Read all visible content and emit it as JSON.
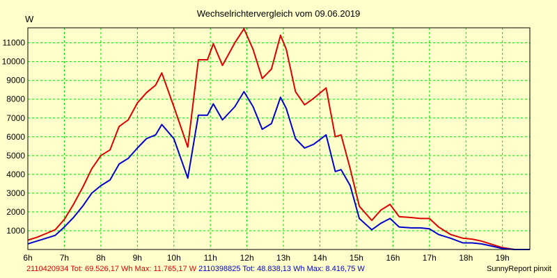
{
  "chart_data": {
    "type": "line",
    "title": "Wechselrichtervergleich vom 09.06.2019",
    "ylabel": "W",
    "xlabel": "",
    "ylim": [
      0,
      11800
    ],
    "xlim": [
      6.0,
      19.75
    ],
    "grid": true,
    "y_ticks": [
      "1000",
      "2000",
      "3000",
      "4000",
      "5000",
      "6000",
      "7000",
      "8000",
      "9000",
      "10000",
      "11000"
    ],
    "y_tick_values": [
      1000,
      2000,
      3000,
      4000,
      5000,
      6000,
      7000,
      8000,
      9000,
      10000,
      11000
    ],
    "x_ticks": [
      "6h",
      "7h",
      "8h",
      "9h",
      "10h",
      "11h",
      "12h",
      "13h",
      "14h",
      "15h",
      "16h",
      "17h",
      "18h",
      "19h"
    ],
    "x_tick_values": [
      6,
      7,
      8,
      9,
      10,
      11,
      12,
      13,
      14,
      15,
      16,
      17,
      18,
      19
    ],
    "series": [
      {
        "name": "2110420934",
        "color": "#dd0000",
        "x": [
          6.0,
          6.25,
          6.5,
          6.75,
          7.0,
          7.25,
          7.5,
          7.75,
          8.0,
          8.25,
          8.5,
          8.75,
          9.0,
          9.25,
          9.5,
          9.67,
          10.0,
          10.38,
          10.67,
          10.92,
          11.08,
          11.33,
          11.67,
          11.92,
          12.17,
          12.42,
          12.67,
          12.92,
          13.08,
          13.33,
          13.58,
          13.83,
          14.17,
          14.42,
          14.58,
          14.83,
          15.08,
          15.42,
          15.67,
          15.92,
          16.17,
          16.5,
          16.75,
          17.0,
          17.25,
          17.58,
          17.92,
          18.17,
          18.42,
          18.67,
          19.0,
          19.33,
          19.75
        ],
        "y": [
          500,
          650,
          850,
          1050,
          1600,
          2400,
          3300,
          4300,
          5000,
          5300,
          6550,
          6900,
          7800,
          8350,
          8750,
          9400,
          7600,
          5450,
          10100,
          10100,
          10950,
          9800,
          11000,
          11750,
          10650,
          9100,
          9600,
          11400,
          10650,
          8400,
          7700,
          8050,
          8600,
          6000,
          6100,
          4300,
          2300,
          1550,
          2100,
          2400,
          1750,
          1700,
          1650,
          1650,
          1200,
          800,
          600,
          550,
          450,
          300,
          100,
          0,
          0
        ]
      },
      {
        "name": "2110398825",
        "color": "#0000cc",
        "x": [
          6.0,
          6.25,
          6.5,
          6.75,
          7.0,
          7.25,
          7.5,
          7.75,
          8.0,
          8.25,
          8.5,
          8.75,
          9.0,
          9.25,
          9.5,
          9.67,
          10.0,
          10.38,
          10.67,
          10.92,
          11.08,
          11.33,
          11.67,
          11.92,
          12.17,
          12.42,
          12.67,
          12.92,
          13.08,
          13.33,
          13.58,
          13.83,
          14.17,
          14.42,
          14.58,
          14.83,
          15.08,
          15.42,
          15.67,
          15.92,
          16.17,
          16.5,
          16.75,
          17.0,
          17.25,
          17.58,
          17.92,
          18.17,
          18.42,
          18.67,
          19.0,
          19.33,
          19.75
        ],
        "y": [
          300,
          450,
          600,
          750,
          1200,
          1700,
          2300,
          3000,
          3400,
          3700,
          4550,
          4850,
          5400,
          5900,
          6100,
          6650,
          5900,
          3800,
          7150,
          7150,
          7750,
          6900,
          7600,
          8400,
          7600,
          6400,
          6700,
          8100,
          7500,
          5900,
          5400,
          5600,
          6100,
          4150,
          4250,
          3400,
          1650,
          1050,
          1400,
          1650,
          1200,
          1150,
          1150,
          1100,
          800,
          600,
          350,
          350,
          300,
          200,
          50,
          0,
          0
        ]
      }
    ],
    "totals": [
      {
        "label": "2110420934 Tot: 69.526,17 Wh Max: 11.765,17 W",
        "color": "#dd0000"
      },
      {
        "label": "2110398825 Tot: 48.838,13 Wh Max: 8.416,75 W",
        "color": "#0000cc"
      }
    ],
    "credit": "SunnyReport pinxit"
  }
}
